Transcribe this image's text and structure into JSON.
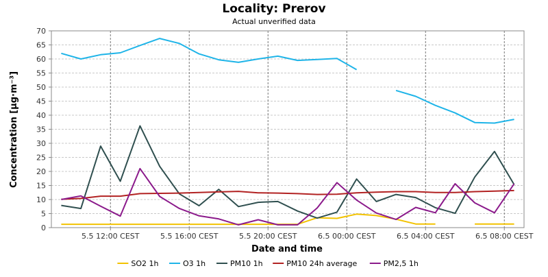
{
  "chart_data": {
    "type": "line",
    "title": "Locality: Prerov",
    "subtitle": "Actual unverified data",
    "xlabel": "Date and time",
    "ylabel": "Concentration [µg·m⁻³]",
    "ylim": [
      0,
      70
    ],
    "yticks": [
      0,
      5,
      10,
      15,
      20,
      25,
      30,
      35,
      40,
      45,
      50,
      55,
      60,
      65,
      70
    ],
    "x_start": "5.5 09:00 CEST",
    "x_end": "6.5 09:00 CEST",
    "x_step_hours": 1,
    "xticks": [
      {
        "hour": 3,
        "label": "5.5 12:00 CEST"
      },
      {
        "hour": 7,
        "label": "5.5 16:00 CEST"
      },
      {
        "hour": 11,
        "label": "5.5 20:00 CEST"
      },
      {
        "hour": 15,
        "label": "6.5 00:00 CEST"
      },
      {
        "hour": 19,
        "label": "6.5 04:00 CEST"
      },
      {
        "hour": 23,
        "label": "6.5 08:00 CEST"
      }
    ],
    "grid": true,
    "legend_position": "bottom",
    "series": [
      {
        "name": "SO2 1h",
        "color": "#f2c200",
        "values": [
          1.2,
          1.2,
          1.2,
          1.2,
          1.2,
          1.2,
          1.2,
          1.2,
          1.2,
          1.2,
          1.2,
          1.2,
          1.2,
          3.5,
          3.3,
          4.8,
          4.3,
          3.0,
          1.3,
          1.3,
          null,
          1.3,
          1.3,
          1.3,
          null
        ]
      },
      {
        "name": "O3 1h",
        "color": "#1eb4e8",
        "values": [
          62.0,
          60.0,
          61.5,
          62.2,
          64.8,
          67.3,
          65.5,
          61.8,
          59.7,
          58.8,
          60.0,
          61.0,
          59.5,
          59.8,
          60.2,
          56.2,
          null,
          48.8,
          46.7,
          43.5,
          40.8,
          37.4,
          37.2,
          38.5,
          null
        ]
      },
      {
        "name": "PM10 1h",
        "color": "#2f4f4f",
        "values": [
          7.9,
          6.8,
          29.0,
          16.5,
          36.2,
          21.8,
          12.0,
          7.8,
          13.6,
          7.5,
          9.0,
          9.3,
          5.9,
          3.4,
          5.5,
          17.3,
          9.3,
          11.8,
          10.7,
          7.1,
          5.1,
          18.0,
          27.1,
          15.3,
          null
        ]
      },
      {
        "name": "PM10 24h average",
        "color": "#b22222",
        "values": [
          10.1,
          10.4,
          11.2,
          11.2,
          12.1,
          12.2,
          12.3,
          12.5,
          12.7,
          12.9,
          12.4,
          12.3,
          12.1,
          11.8,
          11.9,
          12.4,
          12.6,
          12.8,
          12.8,
          12.5,
          12.5,
          12.8,
          13.0,
          13.2,
          null
        ]
      },
      {
        "name": "PM2,5 1h",
        "color": "#8b1a8b",
        "values": [
          10.0,
          11.3,
          7.6,
          4.1,
          21.0,
          11.1,
          6.8,
          4.2,
          3.1,
          1.0,
          2.8,
          1.0,
          1.0,
          7.0,
          16.0,
          9.8,
          5.2,
          2.9,
          7.2,
          5.3,
          15.6,
          8.8,
          5.3,
          15.6,
          null
        ]
      }
    ]
  }
}
